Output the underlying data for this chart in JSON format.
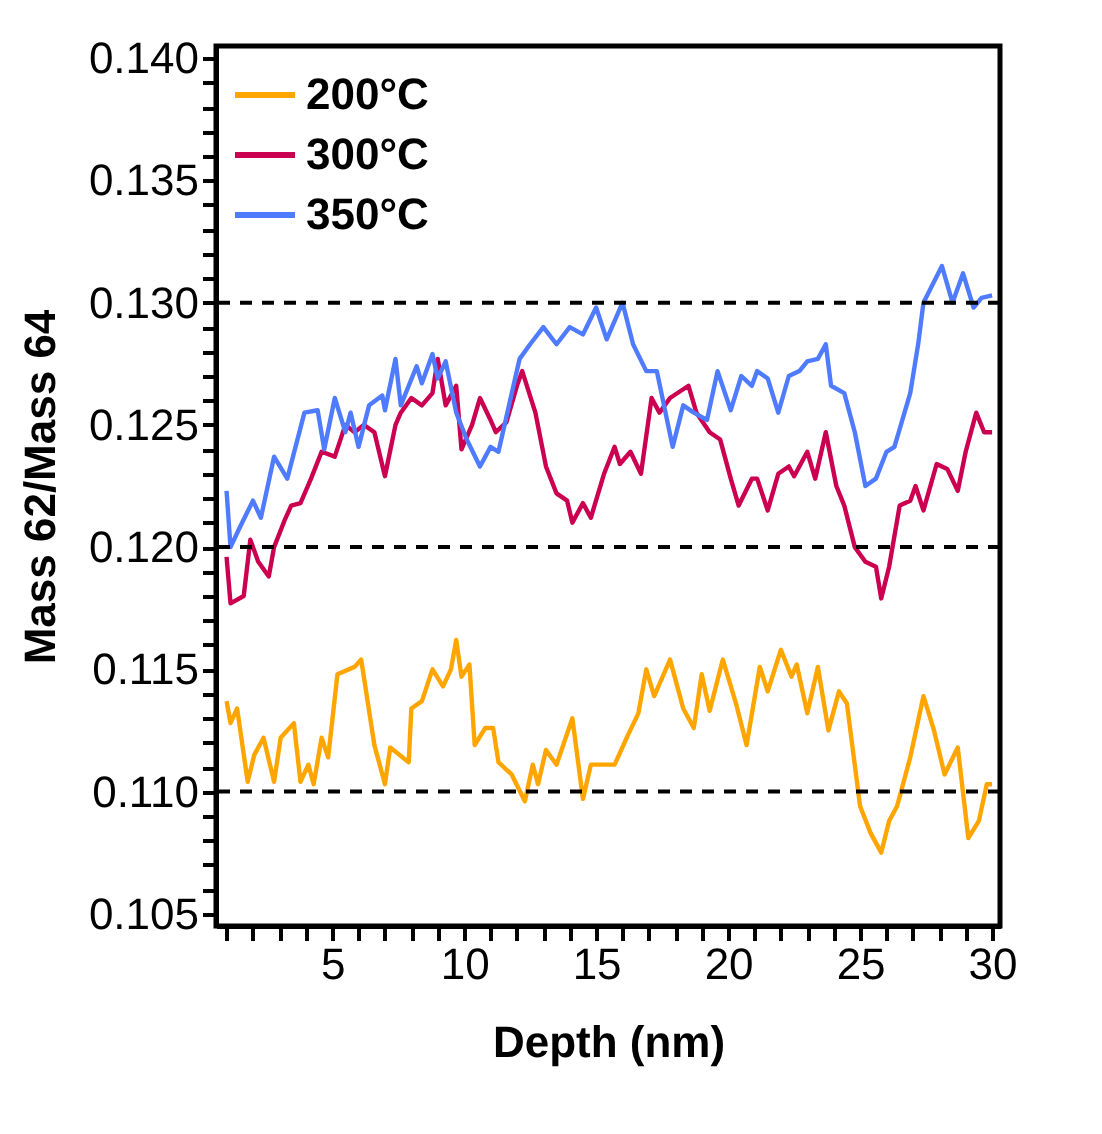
{
  "chart_data": {
    "type": "line",
    "xlabel": "Depth (nm)",
    "ylabel": "Mass 62/Mass 64",
    "xlim": [
      0.6,
      30.3
    ],
    "ylim": [
      0.1045,
      0.1405
    ],
    "xticks": [
      {
        "value": 1,
        "label": null
      },
      {
        "value": 2,
        "label": null
      },
      {
        "value": 3,
        "label": null
      },
      {
        "value": 4,
        "label": null
      },
      5,
      {
        "value": 6,
        "label": null
      },
      {
        "value": 7,
        "label": null
      },
      {
        "value": 8,
        "label": null
      },
      {
        "value": 9,
        "label": null
      },
      10,
      {
        "value": 11,
        "label": null
      },
      {
        "value": 12,
        "label": null
      },
      {
        "value": 13,
        "label": null
      },
      {
        "value": 14,
        "label": null
      },
      15,
      {
        "value": 16,
        "label": null
      },
      {
        "value": 17,
        "label": null
      },
      {
        "value": 18,
        "label": null
      },
      {
        "value": 19,
        "label": null
      },
      20,
      {
        "value": 21,
        "label": null
      },
      {
        "value": 22,
        "label": null
      },
      {
        "value": 23,
        "label": null
      },
      {
        "value": 24,
        "label": null
      },
      25,
      {
        "value": 26,
        "label": null
      },
      {
        "value": 27,
        "label": null
      },
      {
        "value": 28,
        "label": null
      },
      {
        "value": 29,
        "label": null
      },
      30
    ],
    "yticks": [
      {
        "value": 0.105,
        "label": "0.105"
      },
      {
        "value": 0.106,
        "label": null
      },
      {
        "value": 0.107,
        "label": null
      },
      {
        "value": 0.108,
        "label": null
      },
      {
        "value": 0.109,
        "label": null
      },
      {
        "value": 0.11,
        "label": "0.110"
      },
      {
        "value": 0.111,
        "label": null
      },
      {
        "value": 0.112,
        "label": null
      },
      {
        "value": 0.113,
        "label": null
      },
      {
        "value": 0.114,
        "label": null
      },
      {
        "value": 0.115,
        "label": "0.115"
      },
      {
        "value": 0.116,
        "label": null
      },
      {
        "value": 0.117,
        "label": null
      },
      {
        "value": 0.118,
        "label": null
      },
      {
        "value": 0.119,
        "label": null
      },
      {
        "value": 0.12,
        "label": "0.120"
      },
      {
        "value": 0.121,
        "label": null
      },
      {
        "value": 0.122,
        "label": null
      },
      {
        "value": 0.123,
        "label": null
      },
      {
        "value": 0.124,
        "label": null
      },
      {
        "value": 0.125,
        "label": "0.125"
      },
      {
        "value": 0.126,
        "label": null
      },
      {
        "value": 0.127,
        "label": null
      },
      {
        "value": 0.128,
        "label": null
      },
      {
        "value": 0.129,
        "label": null
      },
      {
        "value": 0.13,
        "label": "0.130"
      },
      {
        "value": 0.131,
        "label": null
      },
      {
        "value": 0.132,
        "label": null
      },
      {
        "value": 0.133,
        "label": null
      },
      {
        "value": 0.134,
        "label": null
      },
      {
        "value": 0.135,
        "label": "0.135"
      },
      {
        "value": 0.136,
        "label": null
      },
      {
        "value": 0.137,
        "label": null
      },
      {
        "value": 0.138,
        "label": null
      },
      {
        "value": 0.139,
        "label": null
      },
      {
        "value": 0.14,
        "label": "0.140"
      }
    ],
    "grid": false,
    "legend": "top left",
    "marker": "none",
    "line_style": "solid",
    "ref_lines": [
      {
        "axis": "y",
        "value": 0.11,
        "color": "#000000",
        "line_style": "dashed"
      },
      {
        "axis": "y",
        "value": 0.12,
        "color": "#000000",
        "line_style": "dashed"
      },
      {
        "axis": "y",
        "value": 0.13,
        "color": "#000000",
        "line_style": "dashed"
      }
    ],
    "series": [
      {
        "name": "200°C",
        "color": "#ffa500",
        "x": [
          1.0,
          1.15,
          1.4,
          1.8,
          2.05,
          2.4,
          2.8,
          3.05,
          3.55,
          3.8,
          4.1,
          4.3,
          4.6,
          4.85,
          5.2,
          5.85,
          6.1,
          6.6,
          7.0,
          7.2,
          7.9,
          8.0,
          8.4,
          8.8,
          9.2,
          9.5,
          9.7,
          9.9,
          10.2,
          10.4,
          10.8,
          11.1,
          11.3,
          11.8,
          12.3,
          12.6,
          12.8,
          13.1,
          13.5,
          14.1,
          14.5,
          14.8,
          15.3,
          15.7,
          16.2,
          16.6,
          16.9,
          17.2,
          17.8,
          18.3,
          18.7,
          19.0,
          19.3,
          19.8,
          20.3,
          20.7,
          21.2,
          21.5,
          22.0,
          22.4,
          22.6,
          23.0,
          23.4,
          23.8,
          24.2,
          24.5,
          25.0,
          25.4,
          25.8,
          26.1,
          26.4,
          26.9,
          27.4,
          27.8,
          28.2,
          28.7,
          29.1,
          29.5,
          29.8,
          30.0
        ],
        "values": [
          0.1137,
          0.1128,
          0.1134,
          0.1104,
          0.1115,
          0.1122,
          0.1104,
          0.1122,
          0.1128,
          0.1104,
          0.1111,
          0.1103,
          0.1122,
          0.1114,
          0.1148,
          0.1151,
          0.1154,
          0.1119,
          0.1103,
          0.1118,
          0.1112,
          0.1134,
          0.1137,
          0.115,
          0.1143,
          0.115,
          0.1162,
          0.1147,
          0.1152,
          0.1119,
          0.1126,
          0.1126,
          0.1112,
          0.1107,
          0.1096,
          0.1111,
          0.1103,
          0.1117,
          0.1111,
          0.113,
          0.1097,
          0.1111,
          0.1111,
          0.1111,
          0.1123,
          0.1132,
          0.115,
          0.1139,
          0.1154,
          0.1134,
          0.1126,
          0.1148,
          0.1133,
          0.1154,
          0.1136,
          0.1119,
          0.1151,
          0.1141,
          0.1158,
          0.1147,
          0.1152,
          0.1132,
          0.1151,
          0.1125,
          0.1141,
          0.1136,
          0.1094,
          0.1083,
          0.1075,
          0.1088,
          0.1094,
          0.1114,
          0.1139,
          0.1125,
          0.1107,
          0.1118,
          0.1081,
          0.1088,
          0.1103,
          0.1103
        ]
      },
      {
        "name": "300°C",
        "color": "#cc0050",
        "x": [
          1.0,
          1.15,
          1.65,
          1.9,
          2.2,
          2.6,
          2.8,
          3.2,
          3.45,
          3.8,
          4.2,
          4.6,
          5.1,
          5.5,
          5.85,
          6.2,
          6.6,
          7.0,
          7.4,
          7.6,
          8.0,
          8.4,
          8.8,
          9.0,
          9.3,
          9.7,
          9.9,
          10.3,
          10.6,
          11.0,
          11.2,
          11.6,
          12.0,
          12.2,
          12.7,
          13.1,
          13.5,
          13.9,
          14.1,
          14.5,
          14.8,
          15.3,
          15.7,
          15.9,
          16.3,
          16.7,
          17.1,
          17.4,
          17.8,
          18.5,
          18.8,
          19.3,
          19.7,
          20.1,
          20.4,
          20.9,
          21.1,
          21.5,
          21.9,
          22.3,
          22.5,
          23.0,
          23.3,
          23.7,
          24.1,
          24.4,
          24.8,
          25.2,
          25.6,
          25.8,
          26.1,
          26.5,
          26.9,
          27.1,
          27.4,
          27.9,
          28.3,
          28.7,
          29.0,
          29.4,
          29.7,
          30.0
        ],
        "values": [
          0.1196,
          0.1177,
          0.118,
          0.1203,
          0.1194,
          0.1188,
          0.12,
          0.1211,
          0.1217,
          0.1218,
          0.1228,
          0.1239,
          0.1237,
          0.125,
          0.1247,
          0.125,
          0.1247,
          0.1229,
          0.125,
          0.1255,
          0.1261,
          0.1258,
          0.1263,
          0.1277,
          0.1258,
          0.1266,
          0.124,
          0.125,
          0.1261,
          0.1252,
          0.1247,
          0.1251,
          0.1266,
          0.1272,
          0.1255,
          0.1233,
          0.1222,
          0.1219,
          0.121,
          0.1218,
          0.1212,
          0.123,
          0.1241,
          0.1234,
          0.1239,
          0.123,
          0.1261,
          0.1255,
          0.1261,
          0.1266,
          0.1255,
          0.1247,
          0.1244,
          0.1228,
          0.1217,
          0.1228,
          0.1228,
          0.1215,
          0.123,
          0.1233,
          0.1229,
          0.1239,
          0.1228,
          0.1247,
          0.1225,
          0.1217,
          0.12,
          0.1194,
          0.1192,
          0.1179,
          0.1192,
          0.1217,
          0.1219,
          0.1225,
          0.1215,
          0.1234,
          0.1232,
          0.1223,
          0.1239,
          0.1255,
          0.1247,
          0.1247
        ]
      },
      {
        "name": "350°C",
        "color": "#4f7bff",
        "x": [
          1.0,
          1.15,
          1.5,
          2.0,
          2.3,
          2.8,
          3.3,
          3.95,
          4.45,
          4.7,
          5.1,
          5.5,
          5.7,
          6.0,
          6.4,
          6.9,
          7.0,
          7.4,
          7.6,
          8.2,
          8.4,
          8.8,
          9.0,
          9.3,
          9.7,
          10.1,
          10.6,
          11.0,
          11.3,
          11.7,
          12.1,
          12.5,
          13.0,
          13.5,
          14.0,
          14.5,
          15.0,
          15.4,
          16.0,
          16.4,
          16.9,
          17.3,
          17.9,
          18.3,
          18.7,
          19.2,
          19.6,
          20.1,
          20.5,
          20.9,
          21.1,
          21.5,
          21.9,
          22.3,
          22.7,
          23.0,
          23.4,
          23.7,
          23.9,
          24.4,
          24.8,
          25.2,
          25.6,
          26.0,
          26.3,
          26.9,
          27.2,
          27.4,
          28.1,
          28.5,
          28.9,
          29.3,
          29.6,
          30.0
        ],
        "values": [
          0.1223,
          0.12,
          0.1208,
          0.1219,
          0.1212,
          0.1237,
          0.1228,
          0.1255,
          0.1256,
          0.124,
          0.1261,
          0.1247,
          0.1255,
          0.1241,
          0.1258,
          0.1262,
          0.1256,
          0.1277,
          0.1258,
          0.1274,
          0.1267,
          0.1279,
          0.1269,
          0.1276,
          0.1255,
          0.1244,
          0.1233,
          0.1241,
          0.1239,
          0.1258,
          0.1277,
          0.1283,
          0.129,
          0.1283,
          0.129,
          0.1287,
          0.1298,
          0.1285,
          0.13,
          0.1283,
          0.1272,
          0.1272,
          0.1241,
          0.1258,
          0.1255,
          0.1252,
          0.1272,
          0.1256,
          0.127,
          0.1266,
          0.1272,
          0.1269,
          0.1255,
          0.127,
          0.1272,
          0.1276,
          0.1277,
          0.1283,
          0.1266,
          0.1263,
          0.1247,
          0.1225,
          0.1228,
          0.1239,
          0.1241,
          0.1263,
          0.1283,
          0.13,
          0.1315,
          0.13,
          0.1312,
          0.1298,
          0.1302,
          0.1303
        ]
      }
    ]
  }
}
